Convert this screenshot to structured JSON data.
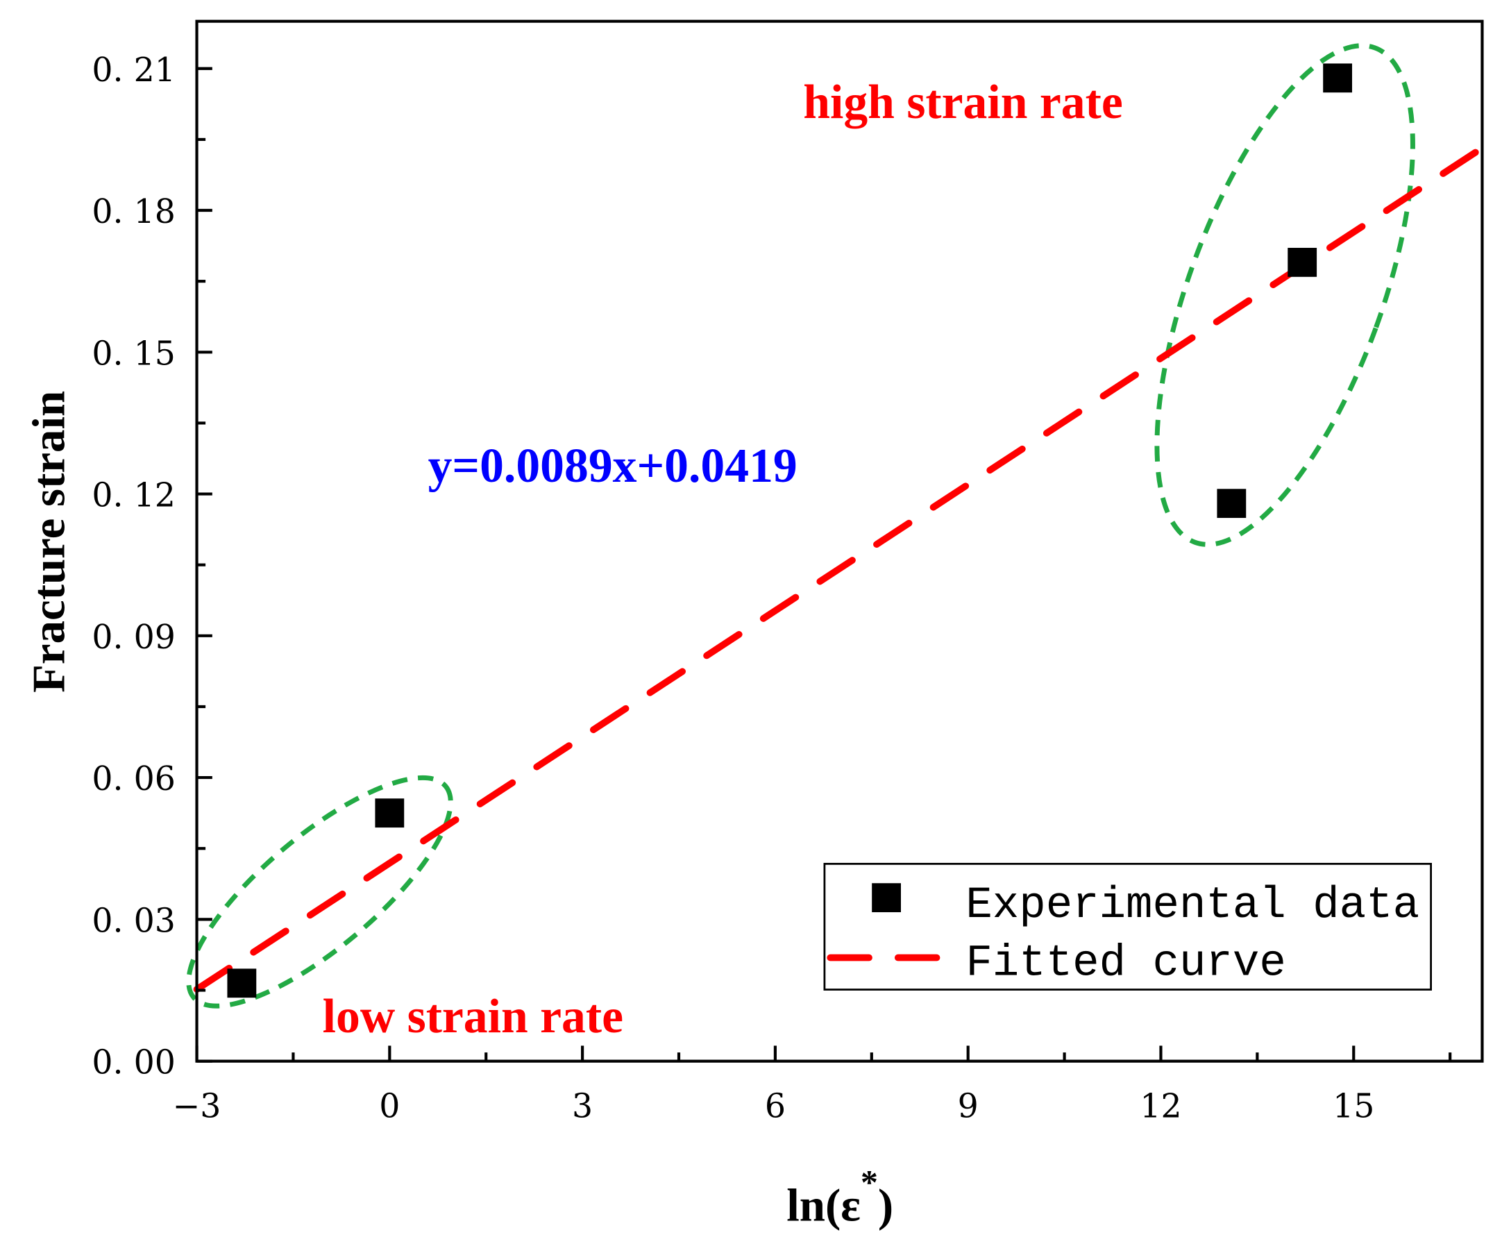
{
  "chart_data": {
    "type": "scatter",
    "title": "",
    "xlabel": "ln(ε*)",
    "xlabel_base": "ln(ε",
    "xlabel_sup": "*",
    "xlabel_close": ")",
    "ylabel": "Fracture strain",
    "xlim": [
      -3,
      17
    ],
    "ylim": [
      0,
      0.22
    ],
    "xticks": [
      "-3",
      "0",
      "3",
      "6",
      "9",
      "12",
      "15"
    ],
    "xtick_values": [
      -3,
      0,
      3,
      6,
      9,
      12,
      15
    ],
    "yticks": [
      "0.00",
      "0.03",
      "0.06",
      "0.09",
      "0.12",
      "0.15",
      "0.18",
      "0.21"
    ],
    "ytick_values": [
      0,
      0.03,
      0.06,
      0.09,
      0.12,
      0.15,
      0.18,
      0.21
    ],
    "grid": false,
    "series": [
      {
        "name": "Experimental data",
        "kind": "scatter",
        "color": "#000000",
        "x": [
          -2.3,
          0.0,
          13.1,
          14.2,
          14.75
        ],
        "y": [
          0.0165,
          0.0525,
          0.118,
          0.169,
          0.208
        ]
      },
      {
        "name": "Fitted curve",
        "kind": "line",
        "style": "dashed",
        "color": "#ff0000",
        "slope": 0.0089,
        "intercept": 0.0419
      }
    ],
    "legend": {
      "placement": "bottom-right",
      "entries": [
        "Experimental data",
        "Fitted curve"
      ]
    },
    "annotations": {
      "equation": {
        "text": "y=0.0089x+0.0419",
        "color": "#0000ff"
      },
      "high": {
        "text": "high strain rate",
        "color": "#ff0000"
      },
      "low": {
        "text": "low strain rate",
        "color": "#ff0000"
      }
    },
    "ellipse_color": "#22aa44"
  }
}
